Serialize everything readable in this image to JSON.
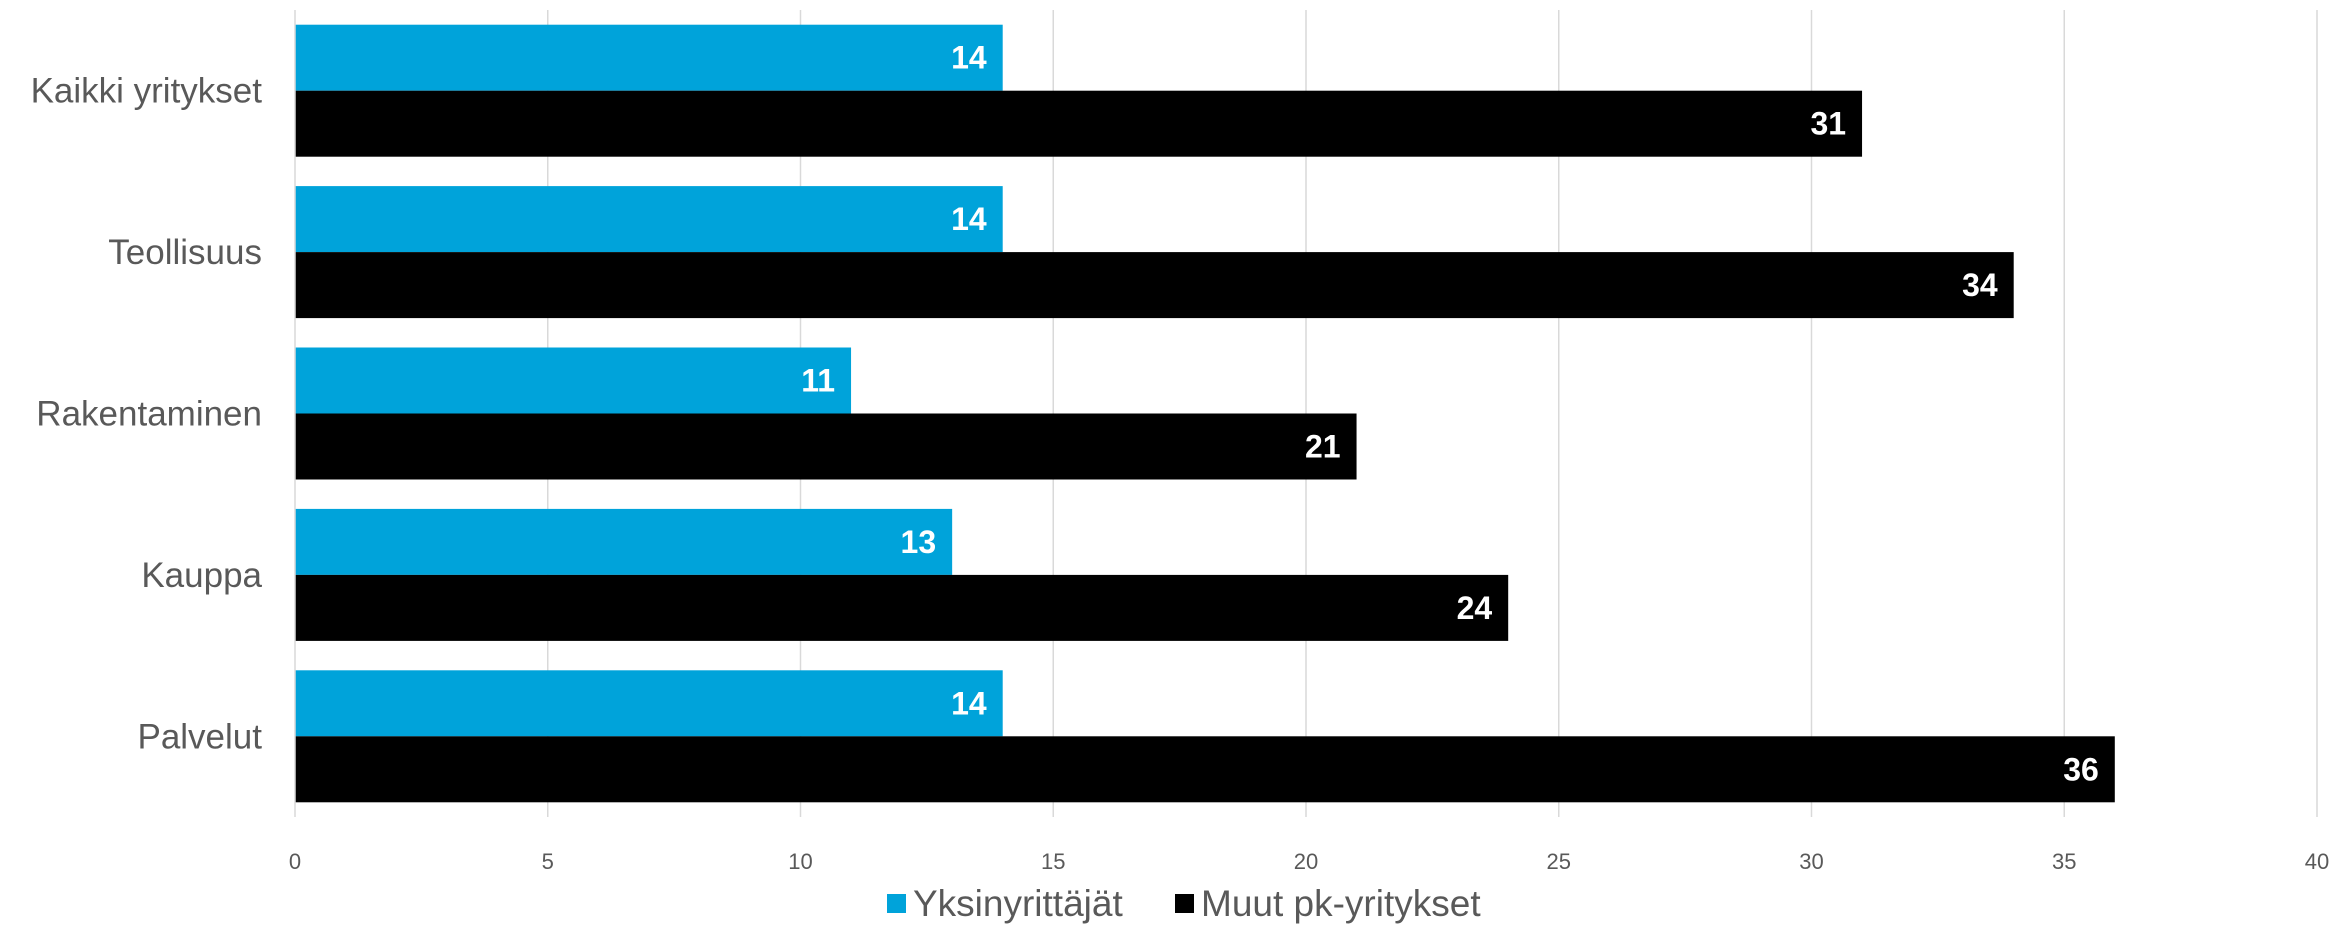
{
  "chart_data": {
    "type": "bar",
    "orientation": "horizontal",
    "categories": [
      "Kaikki yritykset",
      "Teollisuus",
      "Rakentaminen",
      "Kauppa",
      "Palvelut"
    ],
    "series": [
      {
        "name": "Yksinyrittäjät",
        "color": "#00A3DA",
        "values": [
          14,
          14,
          11,
          13,
          14
        ]
      },
      {
        "name": "Muut pk-yritykset",
        "color": "#000000",
        "values": [
          31,
          34,
          21,
          24,
          36
        ]
      }
    ],
    "xlim": [
      0,
      40
    ],
    "xticks": [
      0,
      5,
      10,
      15,
      20,
      25,
      30,
      35,
      40
    ],
    "grid": true,
    "legend_position": "bottom",
    "title": "",
    "xlabel": "",
    "ylabel": ""
  }
}
